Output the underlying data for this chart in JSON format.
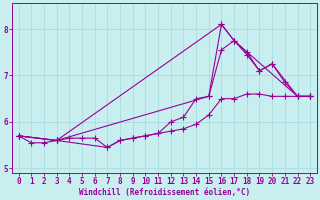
{
  "xlabel": "Windchill (Refroidissement éolien,°C)",
  "bg_color": "#c8eef0",
  "line_color": "#990099",
  "grid_color": "#aadddd",
  "xlim": [
    -0.5,
    23.5
  ],
  "ylim": [
    4.9,
    8.55
  ],
  "xticks": [
    0,
    1,
    2,
    3,
    4,
    5,
    6,
    7,
    8,
    9,
    10,
    11,
    12,
    13,
    14,
    15,
    16,
    17,
    18,
    19,
    20,
    21,
    22,
    23
  ],
  "yticks": [
    5,
    6,
    7,
    8
  ],
  "line1_x": [
    0,
    1,
    2,
    3,
    4,
    5,
    6,
    7,
    8,
    9,
    10,
    11,
    12,
    13,
    14,
    15,
    16,
    17,
    18,
    19,
    20,
    21,
    22,
    23
  ],
  "line1_y": [
    5.7,
    5.55,
    5.55,
    5.6,
    5.65,
    5.65,
    5.65,
    5.45,
    5.6,
    5.65,
    5.7,
    5.75,
    5.8,
    5.85,
    5.95,
    6.15,
    6.5,
    6.5,
    6.6,
    6.6,
    6.55,
    6.55,
    6.55,
    6.55
  ],
  "line2_x": [
    0,
    3,
    7,
    8,
    9,
    10,
    11,
    12,
    13,
    14,
    15,
    16,
    17,
    18,
    19,
    20,
    21,
    22,
    23
  ],
  "line2_y": [
    5.7,
    5.6,
    5.45,
    5.6,
    5.65,
    5.7,
    5.75,
    6.0,
    6.1,
    6.5,
    6.55,
    7.55,
    7.75,
    7.5,
    7.1,
    7.25,
    6.85,
    6.55,
    6.55
  ],
  "line3_x": [
    0,
    3,
    15,
    16,
    17,
    18,
    19,
    20,
    22,
    23
  ],
  "line3_y": [
    5.7,
    5.6,
    6.55,
    8.1,
    7.75,
    7.45,
    7.1,
    7.25,
    6.55,
    6.55
  ],
  "line4_x": [
    0,
    3,
    16,
    17,
    22,
    23
  ],
  "line4_y": [
    5.7,
    5.6,
    8.1,
    7.75,
    6.55,
    6.55
  ]
}
